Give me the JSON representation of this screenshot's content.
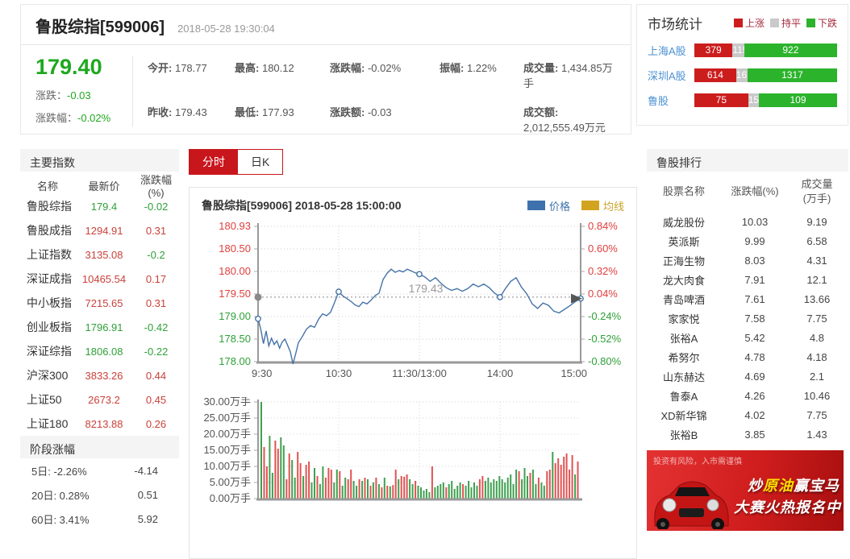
{
  "header": {
    "title": "鲁股综指[599006]",
    "timestamp": "2018-05-28 19:30:04",
    "price": "179.40",
    "change_label": "涨跌：",
    "change_value": "-0.03",
    "change_pct_label": "涨跌幅：",
    "change_pct_value": "-0.02%",
    "stats": [
      {
        "label": "今开:",
        "value": "178.77"
      },
      {
        "label": "最高:",
        "value": "180.12"
      },
      {
        "label": "涨跌幅:",
        "value": "-0.02%"
      },
      {
        "label": "振幅:",
        "value": "1.22%"
      },
      {
        "label": "成交量:",
        "value": "1,434.85万手"
      },
      {
        "label": "昨收:",
        "value": "179.43"
      },
      {
        "label": "最低:",
        "value": "177.93"
      },
      {
        "label": "涨跌额:",
        "value": "-0.03"
      },
      {
        "label": "",
        "value": ""
      },
      {
        "label": "成交额:",
        "value": "2,012,555.49万元"
      }
    ]
  },
  "market_stats": {
    "title": "市场统计",
    "legend": [
      {
        "label": "上涨",
        "color": "#cc1d1d"
      },
      {
        "label": "持平",
        "color": "#c9c9c9"
      },
      {
        "label": "下跌",
        "color": "#2cb32c"
      }
    ],
    "rows": [
      {
        "name": "上海A股",
        "up": 379,
        "flat": 115,
        "down": 922
      },
      {
        "name": "深圳A股",
        "up": 614,
        "flat": 167,
        "down": 1317
      },
      {
        "name": "鲁股",
        "up": 75,
        "flat": 15,
        "down": 109
      }
    ]
  },
  "indices": {
    "title": "主要指数",
    "headers": [
      "名称",
      "最新价",
      "涨跌幅(%)"
    ],
    "rows": [
      {
        "name": "鲁股综指",
        "price": "179.4",
        "chg": "-0.02",
        "price_cls": "green",
        "chg_cls": "green"
      },
      {
        "name": "鲁股成指",
        "price": "1294.91",
        "chg": "0.31",
        "price_cls": "red",
        "chg_cls": "red"
      },
      {
        "name": "上证指数",
        "price": "3135.08",
        "chg": "-0.2",
        "price_cls": "red",
        "chg_cls": "green"
      },
      {
        "name": "深证成指",
        "price": "10465.54",
        "chg": "0.17",
        "price_cls": "red",
        "chg_cls": "red"
      },
      {
        "name": "中小板指",
        "price": "7215.65",
        "chg": "0.31",
        "price_cls": "red",
        "chg_cls": "red"
      },
      {
        "name": "创业板指",
        "price": "1796.91",
        "chg": "-0.42",
        "price_cls": "green",
        "chg_cls": "green"
      },
      {
        "name": "深证综指",
        "price": "1806.08",
        "chg": "-0.22",
        "price_cls": "green",
        "chg_cls": "green"
      },
      {
        "name": "沪深300",
        "price": "3833.26",
        "chg": "0.44",
        "price_cls": "red",
        "chg_cls": "red"
      },
      {
        "name": "上证50",
        "price": "2673.2",
        "chg": "0.45",
        "price_cls": "red",
        "chg_cls": "red"
      },
      {
        "name": "上证180",
        "price": "8213.88",
        "chg": "0.26",
        "price_cls": "red",
        "chg_cls": "red"
      }
    ]
  },
  "stage": {
    "title": "阶段涨幅",
    "rows": [
      {
        "label": "5日: -2.26%",
        "value": "-4.14"
      },
      {
        "label": "20日: 0.28%",
        "value": "0.51"
      },
      {
        "label": "60日: 3.41%",
        "value": "5.92"
      }
    ]
  },
  "tabs": [
    {
      "label": "分时",
      "active": true
    },
    {
      "label": "日K",
      "active": false
    }
  ],
  "ranking": {
    "title": "鲁股排行",
    "headers": [
      "股票名称",
      "涨跌幅(%)",
      "成交量",
      "(万手)"
    ],
    "rows": [
      {
        "name": "威龙股份",
        "chg": "10.03",
        "vol": "9.19"
      },
      {
        "name": "英派斯",
        "chg": "9.99",
        "vol": "6.58"
      },
      {
        "name": "正海生物",
        "chg": "8.03",
        "vol": "4.31"
      },
      {
        "name": "龙大肉食",
        "chg": "7.91",
        "vol": "12.1"
      },
      {
        "name": "青岛啤酒",
        "chg": "7.61",
        "vol": "13.66"
      },
      {
        "name": "家家悦",
        "chg": "7.58",
        "vol": "7.75"
      },
      {
        "name": "张裕A",
        "chg": "5.42",
        "vol": "4.8"
      },
      {
        "name": "希努尔",
        "chg": "4.78",
        "vol": "4.18"
      },
      {
        "name": "山东赫达",
        "chg": "4.69",
        "vol": "2.1"
      },
      {
        "name": "鲁泰A",
        "chg": "4.26",
        "vol": "10.46"
      },
      {
        "name": "XD新华锦",
        "chg": "4.02",
        "vol": "7.75"
      },
      {
        "name": "张裕B",
        "chg": "3.85",
        "vol": "1.43"
      }
    ]
  },
  "ad": {
    "disclaimer": "投资有风险，入市需谨慎",
    "line1_pre": "炒",
    "line1_hl": "原油",
    "line1_post": "赢宝马",
    "line2": "大赛火热报名中"
  },
  "chart_data": [
    {
      "type": "line",
      "title": "鲁股综指[599006] 2018-05-28 15:00:00",
      "legend": [
        {
          "label": "价格",
          "color": "#3f72ad"
        },
        {
          "label": "均线",
          "color": "#d2a31f"
        }
      ],
      "x_ticks": [
        "9:30",
        "10:30",
        "11:30/13:00",
        "14:00",
        "15:00"
      ],
      "y_ticks_left": [
        "180.93",
        "180.50",
        "180.00",
        "179.50",
        "179.00",
        "178.50",
        "178.00"
      ],
      "y_ticks_right": [
        "0.84%",
        "0.60%",
        "0.32%",
        "0.04%",
        "-0.24%",
        "-0.52%",
        "-0.80%"
      ],
      "ylim": [
        178.0,
        181.0
      ],
      "prev_close": 179.43,
      "prev_close_label": "179.43",
      "x_range_minutes": 240,
      "marker_minutes": [
        0,
        60,
        120,
        180,
        240
      ],
      "series": [
        {
          "name": "价格",
          "color": "#4673a8",
          "minutes": [
            0,
            2,
            4,
            6,
            8,
            10,
            12,
            14,
            16,
            18,
            20,
            22,
            24,
            26,
            28,
            30,
            33,
            36,
            39,
            42,
            45,
            48,
            51,
            54,
            57,
            60,
            63,
            66,
            69,
            72,
            75,
            78,
            81,
            84,
            87,
            90,
            93,
            96,
            99,
            102,
            105,
            108,
            111,
            114,
            117,
            120,
            124,
            128,
            132,
            136,
            140,
            144,
            148,
            152,
            156,
            160,
            164,
            168,
            172,
            176,
            180,
            184,
            188,
            192,
            196,
            200,
            204,
            208,
            212,
            216,
            220,
            224,
            228,
            232,
            236,
            240
          ],
          "prices": [
            178.95,
            178.72,
            178.4,
            178.68,
            178.35,
            178.52,
            178.38,
            178.46,
            178.3,
            178.44,
            178.5,
            178.36,
            178.22,
            177.95,
            178.18,
            178.42,
            178.56,
            178.72,
            178.8,
            178.76,
            178.94,
            179.06,
            179.02,
            179.1,
            179.32,
            179.55,
            179.46,
            179.4,
            179.34,
            179.26,
            179.22,
            179.32,
            179.28,
            179.36,
            179.46,
            179.52,
            179.82,
            179.96,
            180.05,
            179.98,
            180.02,
            179.99,
            180.05,
            180.01,
            179.97,
            179.94,
            179.88,
            179.78,
            179.86,
            179.74,
            179.64,
            179.58,
            179.62,
            179.56,
            179.62,
            179.72,
            179.66,
            179.72,
            179.64,
            179.52,
            179.43,
            179.62,
            179.78,
            179.86,
            179.65,
            179.5,
            179.28,
            179.18,
            179.3,
            179.25,
            179.12,
            179.08,
            179.16,
            179.24,
            179.33,
            179.4
          ]
        }
      ]
    },
    {
      "type": "bar",
      "title": "成交量",
      "y_ticks": [
        "30.00万手",
        "25.00万手",
        "20.00万手",
        "15.00万手",
        "10.00万手",
        "5.00万手",
        "0.00万手"
      ],
      "ylim": [
        0,
        30
      ],
      "up_color": "#e05353",
      "down_color": "#3fa050",
      "values": [
        30,
        16,
        10,
        19.5,
        8,
        18,
        15.5,
        19,
        16.5,
        6,
        14,
        12,
        6.5,
        14.5,
        11,
        7,
        10.5,
        11.5,
        5,
        9.5,
        7,
        4.5,
        10,
        6.5,
        9.5,
        9,
        5,
        9,
        8.5,
        4,
        6.5,
        6,
        9,
        5.5,
        4,
        6,
        5.5,
        6.5,
        6,
        4,
        5,
        6.5,
        4.5,
        3.5,
        6.5,
        4,
        3.8,
        4.2,
        9,
        6,
        7,
        6.8,
        7.5,
        6,
        4.5,
        5.5,
        4,
        3.5,
        2.5,
        3,
        2,
        10,
        3.5,
        4,
        4.5,
        5,
        3.5,
        4.5,
        5.5,
        3,
        4,
        5,
        4.5,
        4,
        5.5,
        3.5,
        5,
        4,
        6,
        7,
        5.5,
        6.5,
        5,
        6,
        5.5,
        7,
        6,
        5,
        6.5,
        7.5,
        4.5,
        9,
        8.5,
        6,
        9.5,
        7,
        8,
        9,
        4.5,
        6.5,
        5,
        4,
        8.5,
        9,
        14.5,
        11,
        12.5,
        10.5,
        13,
        14,
        9,
        13.5,
        7.5,
        11.5
      ],
      "colors": [
        "g",
        "r",
        "r",
        "g",
        "g",
        "r",
        "r",
        "g",
        "g",
        "r",
        "r",
        "g",
        "g",
        "r",
        "r",
        "g",
        "r",
        "r",
        "g",
        "g",
        "r",
        "g",
        "g",
        "r",
        "r",
        "r",
        "g",
        "g",
        "r",
        "g",
        "g",
        "r",
        "r",
        "g",
        "g",
        "r",
        "g",
        "r",
        "g",
        "r",
        "g",
        "r",
        "g",
        "r",
        "g",
        "r",
        "g",
        "r",
        "r",
        "g",
        "r",
        "r",
        "r",
        "g",
        "g",
        "r",
        "g",
        "g",
        "g",
        "g",
        "g",
        "r",
        "g",
        "g",
        "g",
        "g",
        "r",
        "g",
        "g",
        "g",
        "g",
        "g",
        "r",
        "g",
        "g",
        "g",
        "g",
        "g",
        "r",
        "r",
        "g",
        "g",
        "g",
        "g",
        "g",
        "g",
        "g",
        "g",
        "g",
        "g",
        "g",
        "g",
        "r",
        "g",
        "g",
        "g",
        "r",
        "g",
        "g",
        "r",
        "g",
        "g",
        "r",
        "r",
        "g",
        "r",
        "r",
        "r",
        "r",
        "r",
        "r",
        "r",
        "g",
        "r"
      ]
    }
  ]
}
